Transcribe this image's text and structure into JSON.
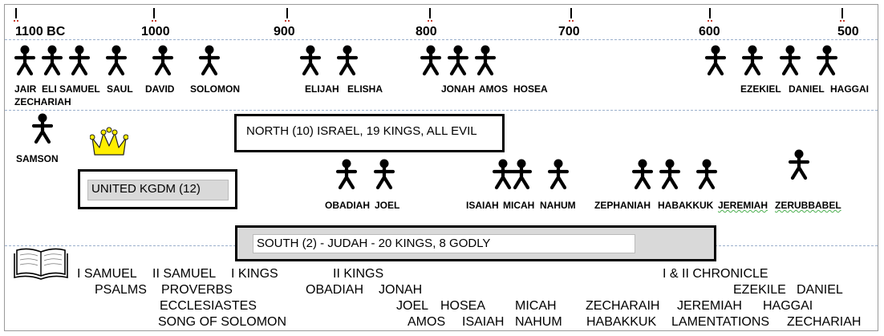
{
  "years": [
    "1100 BC",
    "1000",
    "900",
    "800",
    "700",
    "600",
    "500"
  ],
  "top_people": [
    "JAIR",
    "ELI",
    "SAMUEL",
    "SAUL",
    "DAVID",
    "SOLOMON",
    "ELIJAH",
    "ELISHA",
    "JONAH",
    "AMOS",
    "HOSEA",
    "EZEKIEL",
    "DANIEL",
    "HAGGAI",
    "ZECHARIAH"
  ],
  "judge": "SAMSON",
  "boxes": {
    "north": "NORTH (10) ISRAEL, 19 KINGS, ALL EVIL",
    "united": "UNITED KGDM (12)",
    "south": "SOUTH (2) - JUDAH - 20 KINGS, 8 GODLY"
  },
  "mid_people": [
    "OBADIAH",
    "JOEL",
    "ISAIAH",
    "MICAH",
    "NAHUM",
    "ZEPHANIAH",
    "HABAKKUK",
    "JEREMIAH",
    "ZERUBBABEL"
  ],
  "books": {
    "samuel1": "I SAMUEL",
    "samuel2": "II SAMUEL",
    "kings1": "I KINGS",
    "kings2": "II KINGS",
    "chronicle": "I & II CHRONICLE",
    "psalms": "PSALMS",
    "proverbs": "PROVERBS",
    "obadiah": "OBADIAH",
    "jonah": "JONAH",
    "ezekile": "EZEKILE",
    "daniel": "DANIEL",
    "ecclesiastes": "ECCLESIASTES",
    "joel": "JOEL",
    "hosea": "HOSEA",
    "micah": "MICAH",
    "zecharaih": "ZECHARAIH",
    "jeremiah": "JEREMIAH",
    "haggai": "HAGGAI",
    "song": "SONG OF SOLOMON",
    "amos": "AMOS",
    "isaiah": "ISAIAH",
    "nahum": "NAHUM",
    "habakkuk": "HABAKKUK",
    "lamentations": "LAMENTATIONS",
    "zechariah": "ZECHARIAH"
  },
  "icons": {
    "person": "stick-figure-icon",
    "crown": "crown-icon",
    "book": "open-book-icon"
  },
  "colors": {
    "crown": "#ffee00",
    "box_fill": "#d9d9d9",
    "dash": "#9bb0cc"
  }
}
